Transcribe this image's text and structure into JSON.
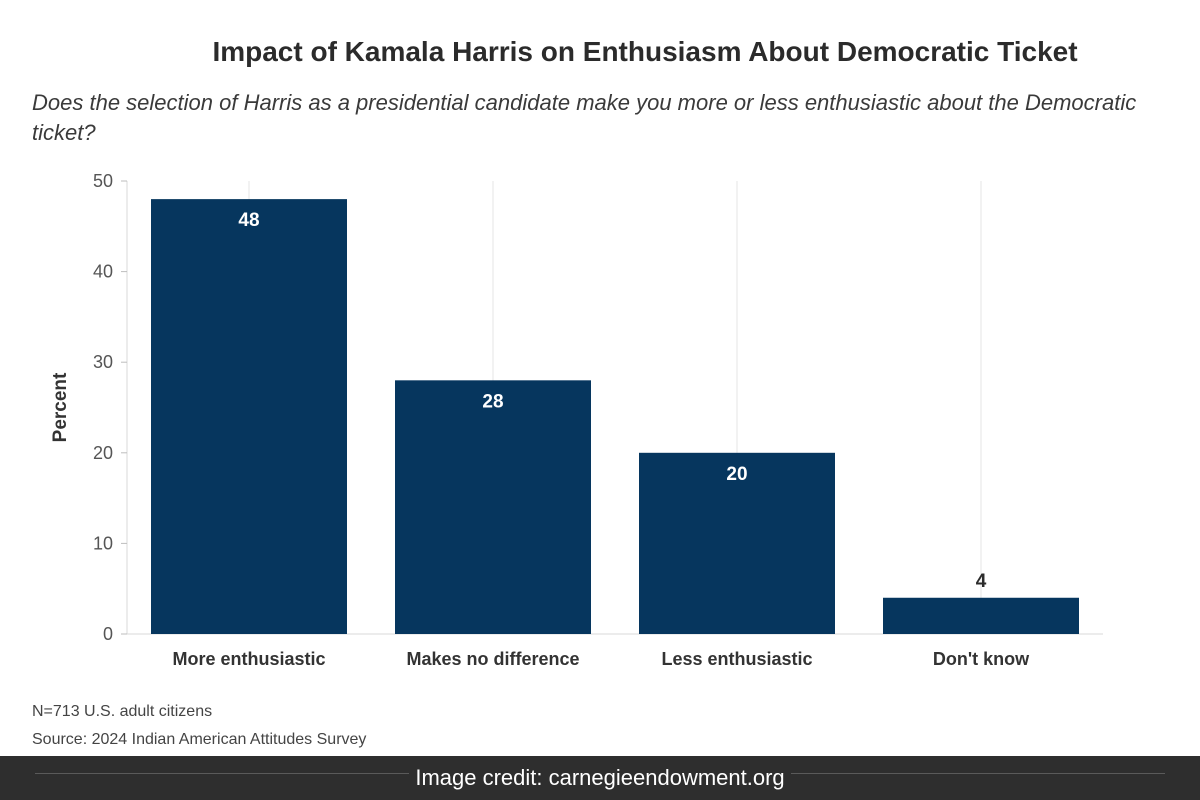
{
  "chart_data": {
    "type": "bar",
    "title": "Impact of Kamala Harris on Enthusiasm About Democratic Ticket",
    "subtitle": "Does the selection of Harris as a presidential candidate make you more or less enthusiastic about the Democratic ticket?",
    "categories": [
      "More enthusiastic",
      "Makes no difference",
      "Less enthusiastic",
      "Don't know"
    ],
    "values": [
      48,
      28,
      20,
      4
    ],
    "data_labels": [
      "48",
      "28",
      "20",
      "4"
    ],
    "xlabel": "",
    "ylabel": "Percent",
    "ylim": [
      0,
      50
    ],
    "yticks": [
      0,
      10,
      20,
      30,
      40,
      50
    ],
    "grid": true,
    "bar_color": "#06365e"
  },
  "footnotes": {
    "sample": "N=713 U.S. adult citizens",
    "source": "Source: 2024 Indian American Attitudes Survey"
  },
  "credit": {
    "text": "Image credit: carnegieendowment.org"
  }
}
